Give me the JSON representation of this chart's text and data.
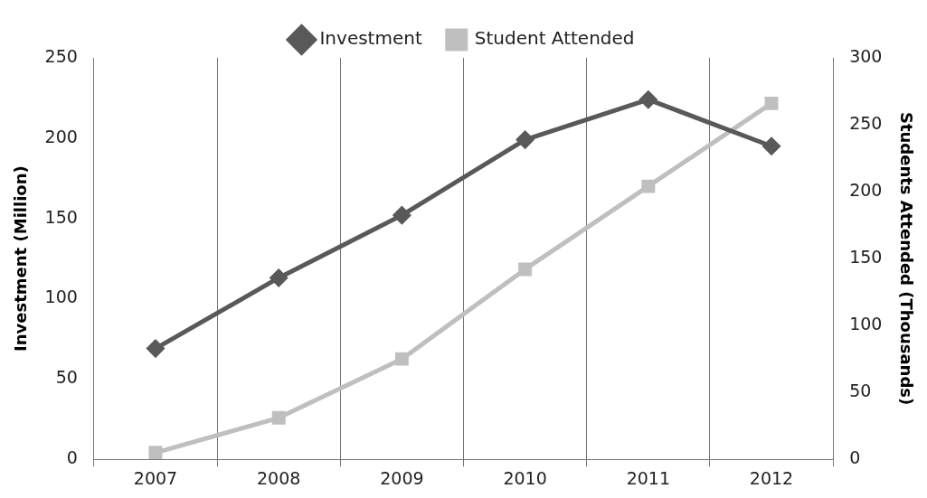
{
  "chart_data": {
    "type": "line",
    "categories": [
      "2007",
      "2008",
      "2009",
      "2010",
      "2011",
      "2012"
    ],
    "series": [
      {
        "name": "Investment",
        "color": "#595959",
        "marker": "diamond",
        "values": [
          69,
          113,
          152,
          199,
          224,
          195
        ]
      },
      {
        "name": "Student Attended",
        "color": "#bfbfbf",
        "marker": "square",
        "axis": "y2",
        "values": [
          5,
          31,
          75,
          142,
          204,
          266
        ]
      }
    ],
    "ylabel": "Investment (Million)",
    "y2label": "Students Attended (Thousands)",
    "ylim": [
      0,
      250
    ],
    "yticks": [
      0,
      50,
      100,
      150,
      200,
      250
    ],
    "y2lim": [
      0,
      300
    ],
    "y2ticks": [
      0,
      50,
      100,
      150,
      200,
      250,
      300
    ],
    "grid": "x",
    "legend": "top",
    "line_style": "solid"
  }
}
